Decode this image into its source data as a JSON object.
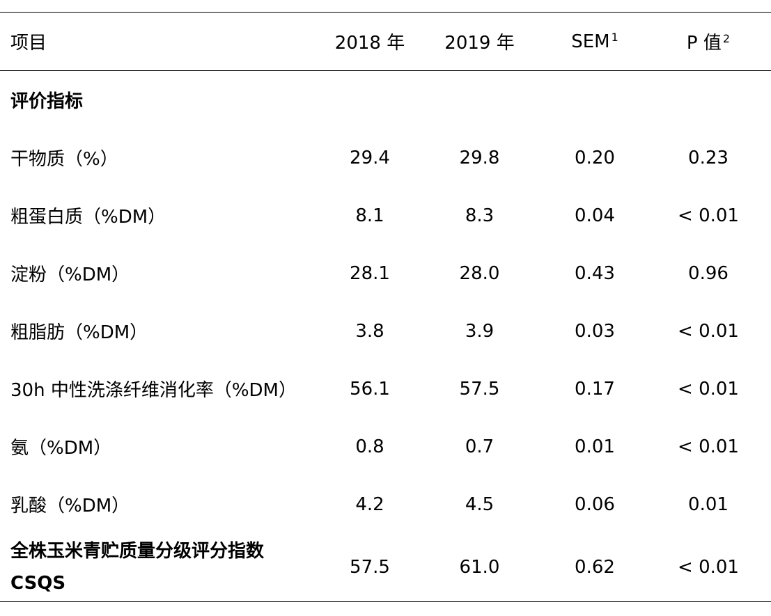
{
  "table": {
    "headers": {
      "item": "项目",
      "y2018": "2018 年",
      "y2019": "2019 年",
      "sem": "SEM",
      "sem_sup": "1",
      "p": "P 值",
      "p_sup": "2"
    },
    "section_title": "评价指标",
    "rows": [
      {
        "name": "干物质（%）",
        "v2018": "29.4",
        "v2019": "29.8",
        "sem": "0.20",
        "p": "0.23"
      },
      {
        "name": "粗蛋白质（%DM）",
        "v2018": "8.1",
        "v2019": "8.3",
        "sem": "0.04",
        "p": "< 0.01"
      },
      {
        "name": "淀粉（%DM）",
        "v2018": "28.1",
        "v2019": "28.0",
        "sem": "0.43",
        "p": "0.96"
      },
      {
        "name": "粗脂肪（%DM）",
        "v2018": "3.8",
        "v2019": "3.9",
        "sem": "0.03",
        "p": "< 0.01"
      },
      {
        "name": "30h 中性洗涤纤维消化率（%DM）",
        "v2018": "56.1",
        "v2019": "57.5",
        "sem": "0.17",
        "p": "< 0.01"
      },
      {
        "name": "氨（%DM）",
        "v2018": "0.8",
        "v2019": "0.7",
        "sem": "0.01",
        "p": "< 0.01"
      },
      {
        "name": "乳酸（%DM）",
        "v2018": "4.2",
        "v2019": "4.5",
        "sem": "0.06",
        "p": "0.01"
      }
    ],
    "final_row": {
      "name_line1": "全株玉米青贮质量分级评分指数",
      "name_line2": "CSQS",
      "v2018": "57.5",
      "v2019": "61.0",
      "sem": "0.62",
      "p": "< 0.01"
    }
  }
}
